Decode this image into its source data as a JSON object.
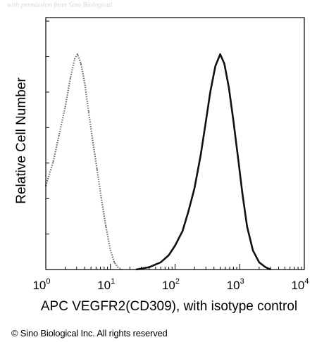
{
  "watermark": "with permission from Sino Biological",
  "copyright": "© Sino Biological Inc. All rights reserved",
  "chart_data": {
    "type": "area",
    "xscale": "log",
    "xlim": [
      1,
      10000
    ],
    "ylim": [
      0,
      100
    ],
    "xlabel": "APC VEGFR2(CD309), with isotype control",
    "ylabel": "Relative Cell Number",
    "x_ticks": [
      {
        "base": "10",
        "exp": "0",
        "value": 1
      },
      {
        "base": "10",
        "exp": "1",
        "value": 10
      },
      {
        "base": "10",
        "exp": "2",
        "value": 100
      },
      {
        "base": "10",
        "exp": "3",
        "value": 1000
      },
      {
        "base": "10",
        "exp": "4",
        "value": 10000
      }
    ],
    "grid": false,
    "series": [
      {
        "line_style": "dotted",
        "color": "#6a6a6a",
        "x": [
          1.0,
          1.3,
          1.6,
          2.0,
          2.4,
          2.8,
          3.1,
          3.5,
          4.0,
          4.6,
          5.3,
          6.2,
          7.2,
          8.5,
          10.0,
          11.5,
          13.0,
          15.0
        ],
        "y": [
          35,
          45,
          56,
          68,
          80,
          88,
          90,
          86,
          78,
          66,
          54,
          42,
          30,
          18,
          8,
          3,
          1,
          0
        ]
      },
      {
        "line_style": "solid",
        "color": "#111111",
        "x": [
          25,
          40,
          60,
          80,
          100,
          130,
          160,
          200,
          250,
          300,
          350,
          420,
          500,
          580,
          680,
          800,
          950,
          1100,
          1300,
          1600,
          2000,
          2500,
          3000
        ],
        "y": [
          0,
          1,
          3,
          6,
          10,
          16,
          24,
          34,
          48,
          62,
          74,
          85,
          90,
          86,
          76,
          62,
          46,
          32,
          18,
          8,
          3,
          1,
          0
        ]
      }
    ]
  }
}
